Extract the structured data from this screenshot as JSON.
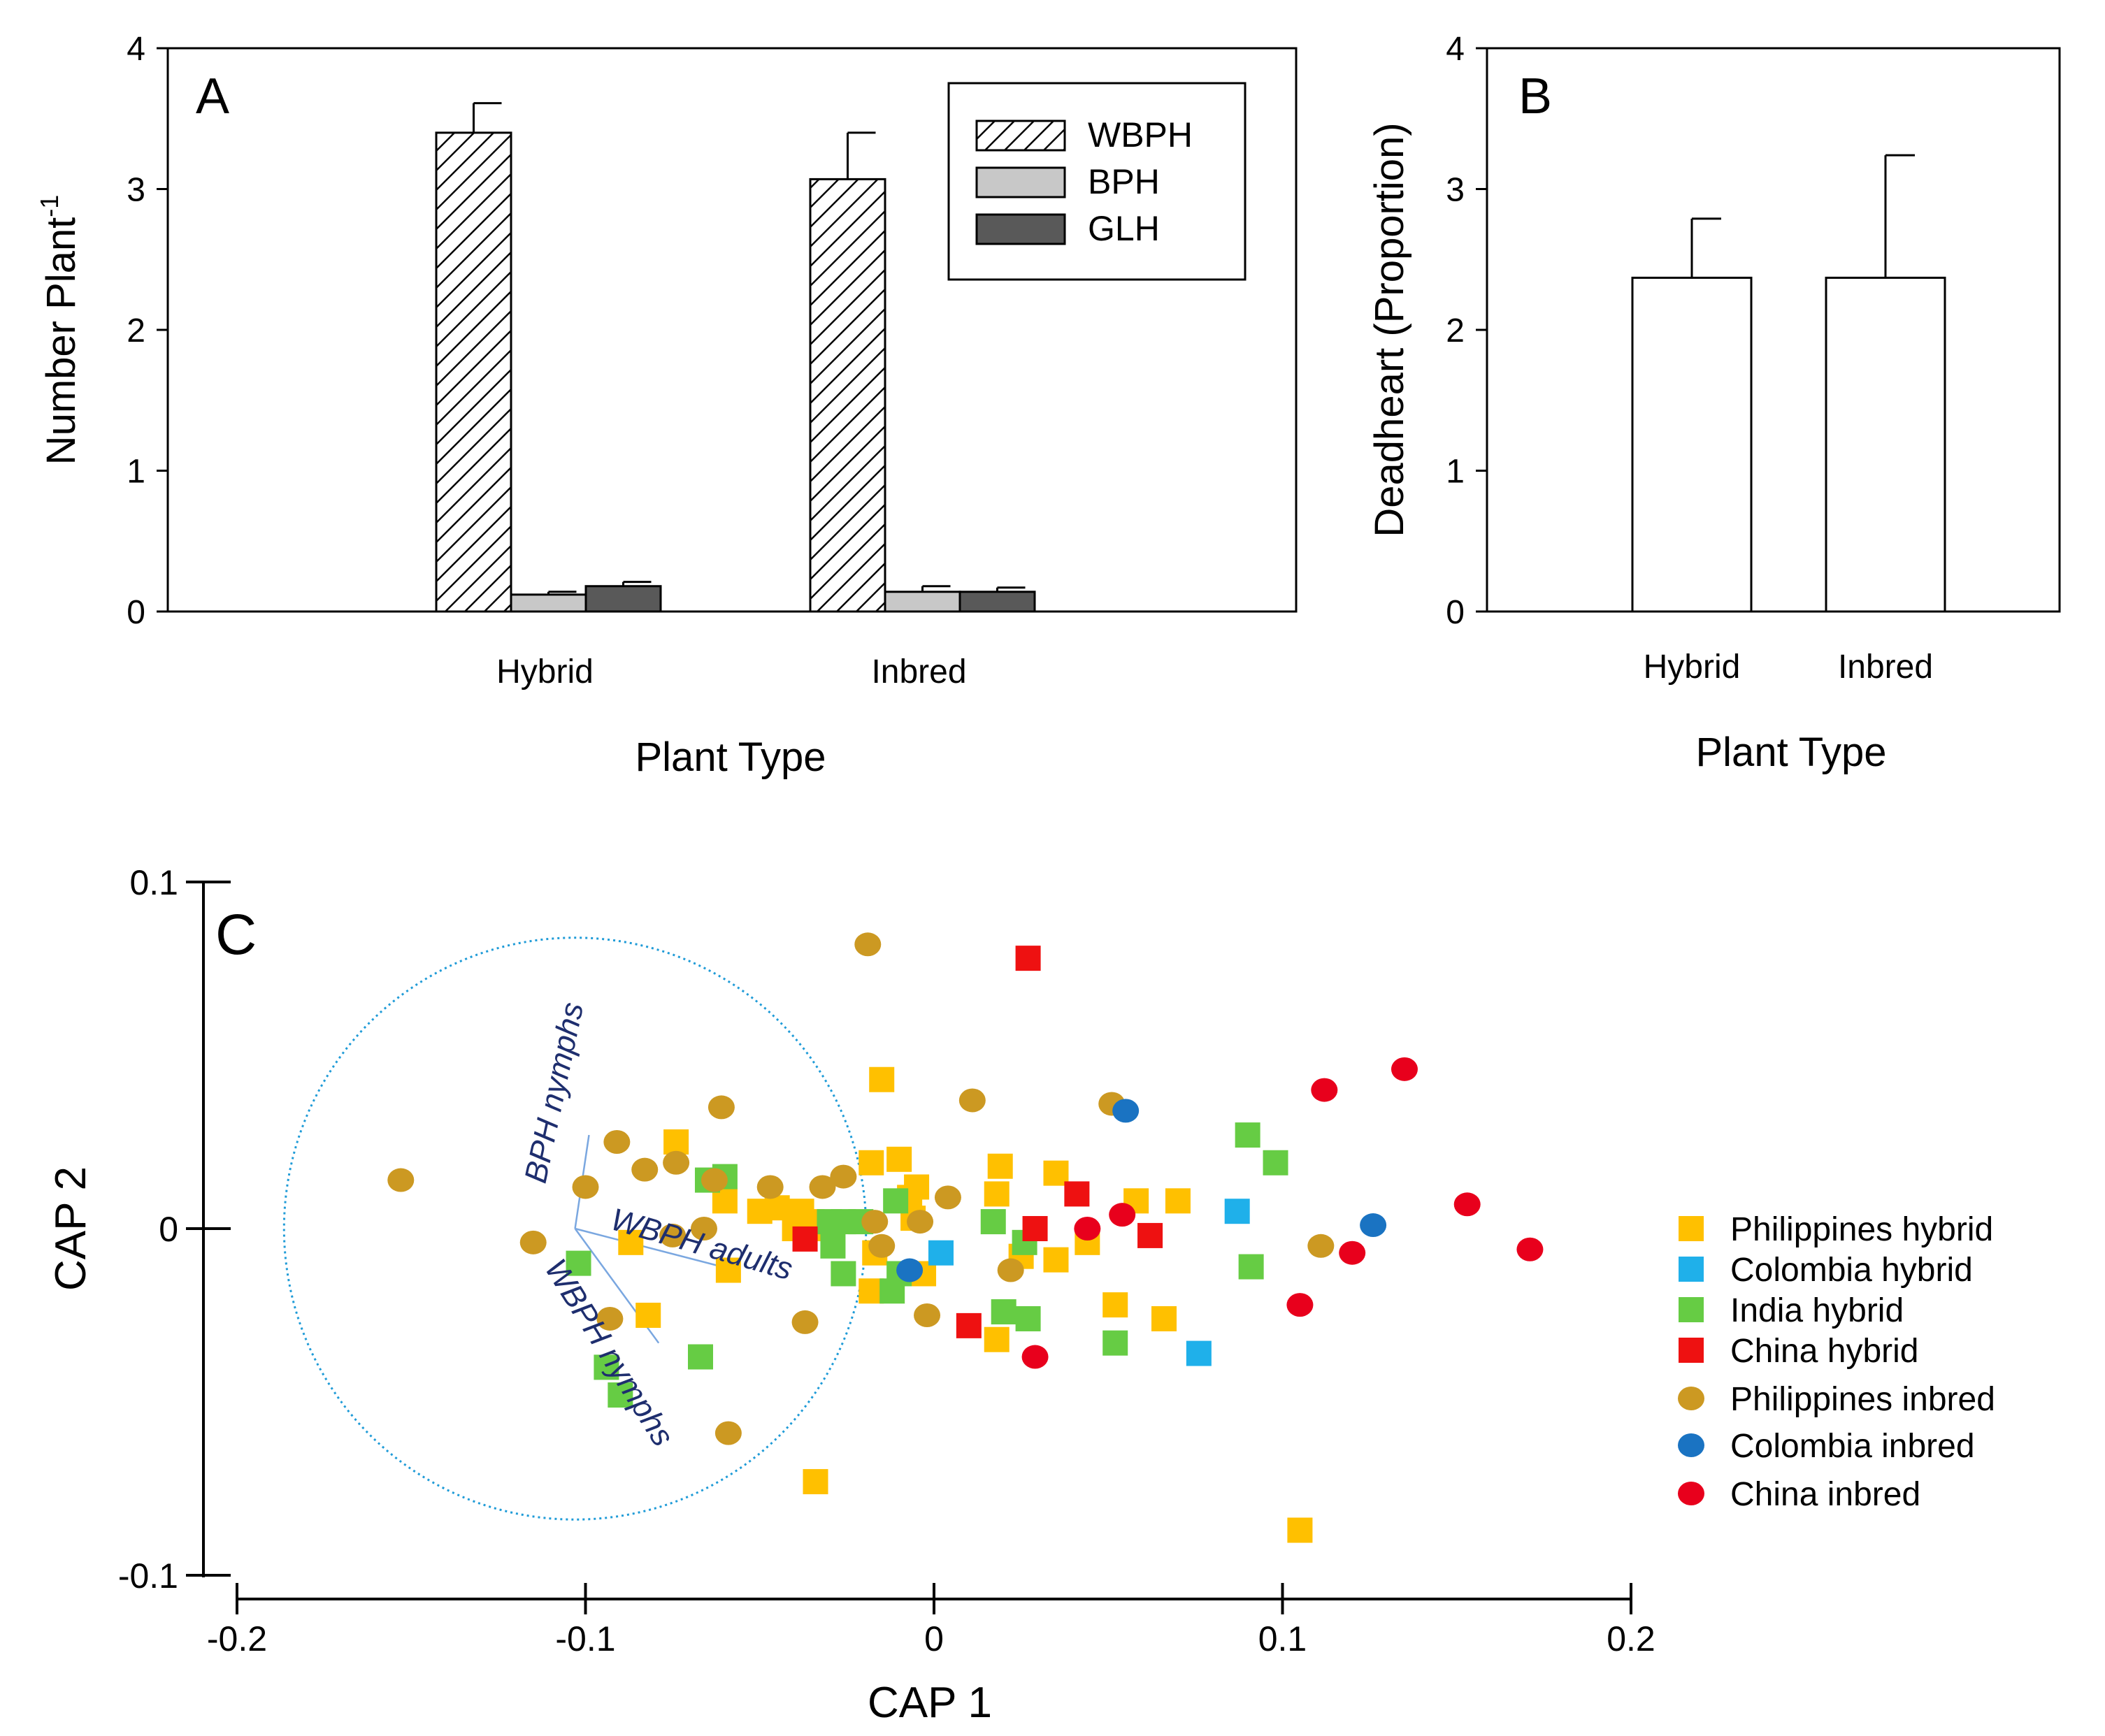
{
  "chart_data": [
    {
      "panel": "A",
      "type": "bar",
      "xlabel": "Plant Type",
      "ylabel": "Number Plant",
      "ylabel_superscript": "-1",
      "ylim": [
        0,
        4
      ],
      "yticks": [
        "0",
        "1",
        "2",
        "3",
        "4"
      ],
      "categories": [
        "Hybrid",
        "Inbred"
      ],
      "series": [
        {
          "name": "WBPH",
          "fill": "hatched",
          "values": [
            3.4,
            3.07
          ],
          "errors": [
            0.21,
            0.33
          ]
        },
        {
          "name": "BPH",
          "fill": "#c8c8c8",
          "values": [
            0.12,
            0.14
          ],
          "errors": [
            0.02,
            0.04
          ]
        },
        {
          "name": "GLH",
          "fill": "#595959",
          "values": [
            0.18,
            0.14
          ],
          "errors": [
            0.03,
            0.03
          ]
        }
      ],
      "legend_position": "top-right"
    },
    {
      "panel": "B",
      "type": "bar",
      "xlabel": "Plant Type",
      "ylabel": "Deadheart (Proportion)",
      "ylim": [
        0,
        4
      ],
      "yticks": [
        "0",
        "1",
        "2",
        "3",
        "4"
      ],
      "categories": [
        "Hybrid",
        "Inbred"
      ],
      "series": [
        {
          "name": "Deadheart",
          "fill": "#ffffff",
          "values": [
            2.37,
            2.37
          ],
          "errors": [
            0.42,
            0.87
          ]
        }
      ]
    },
    {
      "panel": "C",
      "type": "scatter",
      "xlabel": "CAP 1",
      "ylabel": "CAP 2",
      "xlim": [
        -0.2,
        0.2
      ],
      "ylim": [
        -0.1,
        0.1
      ],
      "xticks": [
        "-0.2",
        "-0.1",
        "0",
        "0.1",
        "0.2"
      ],
      "yticks": [
        "-0.1",
        "0",
        "0.1"
      ],
      "circle": {
        "center": [
          -0.103,
          0
        ],
        "radius": 0.0835
      },
      "vectors": [
        {
          "label": "BPH nymphs",
          "end": [
            -0.099,
            0.027
          ]
        },
        {
          "label": "WBPH adults",
          "end": [
            -0.057,
            -0.012
          ]
        },
        {
          "label": "WBPH nymphs",
          "end": [
            -0.079,
            -0.033
          ]
        }
      ],
      "legend_position": "right",
      "series": [
        {
          "name": "Philippines hybrid",
          "marker": "square",
          "color": "#FFC000",
          "points": [
            [
              -0.082,
              -0.025
            ],
            [
              -0.087,
              -0.004
            ],
            [
              -0.074,
              0.025
            ],
            [
              -0.06,
              0.008
            ],
            [
              -0.059,
              -0.012
            ],
            [
              -0.05,
              0.005
            ],
            [
              -0.045,
              0.006
            ],
            [
              -0.04,
              0.0
            ],
            [
              -0.038,
              0.005
            ],
            [
              -0.035,
              0.002
            ],
            [
              -0.03,
              0.0
            ],
            [
              -0.018,
              0.019
            ],
            [
              -0.017,
              -0.007
            ],
            [
              -0.018,
              -0.018
            ],
            [
              -0.015,
              0.043
            ],
            [
              -0.01,
              0.02
            ],
            [
              -0.007,
              0.009
            ],
            [
              -0.006,
              0.003
            ],
            [
              -0.005,
              0.012
            ],
            [
              -0.003,
              -0.013
            ],
            [
              0.018,
              0.01
            ],
            [
              0.019,
              0.018
            ],
            [
              0.018,
              -0.032
            ],
            [
              0.025,
              -0.008
            ],
            [
              0.035,
              0.016
            ],
            [
              0.035,
              -0.009
            ],
            [
              0.044,
              -0.004
            ],
            [
              0.052,
              -0.022
            ],
            [
              0.058,
              0.008
            ],
            [
              0.066,
              -0.026
            ],
            [
              0.07,
              0.008
            ],
            [
              -0.034,
              -0.073
            ],
            [
              0.105,
              -0.087
            ]
          ]
        },
        {
          "name": "Colombia hybrid",
          "marker": "square",
          "color": "#1FB0EA",
          "points": [
            [
              0.002,
              -0.007
            ],
            [
              0.087,
              0.005
            ],
            [
              0.076,
              -0.036
            ]
          ]
        },
        {
          "name": "India hybrid",
          "marker": "square",
          "color": "#66CC44",
          "points": [
            [
              -0.102,
              -0.01
            ],
            [
              -0.094,
              -0.04
            ],
            [
              -0.09,
              -0.048
            ],
            [
              -0.067,
              -0.037
            ],
            [
              -0.065,
              0.014
            ],
            [
              -0.06,
              0.015
            ],
            [
              -0.03,
              0.002
            ],
            [
              -0.029,
              -0.005
            ],
            [
              -0.026,
              0.002
            ],
            [
              -0.026,
              -0.013
            ],
            [
              -0.021,
              0.002
            ],
            [
              -0.011,
              0.008
            ],
            [
              -0.01,
              -0.013
            ],
            [
              -0.012,
              -0.018
            ],
            [
              0.017,
              0.002
            ],
            [
              0.02,
              -0.024
            ],
            [
              0.026,
              -0.004
            ],
            [
              0.027,
              -0.026
            ],
            [
              0.052,
              -0.033
            ],
            [
              0.09,
              0.027
            ],
            [
              0.098,
              0.019
            ],
            [
              0.091,
              -0.011
            ]
          ]
        },
        {
          "name": "China hybrid",
          "marker": "square",
          "color": "#EE1111",
          "points": [
            [
              -0.037,
              -0.003
            ],
            [
              0.01,
              -0.028
            ],
            [
              0.027,
              0.078
            ],
            [
              0.029,
              0.0
            ],
            [
              0.041,
              0.01
            ],
            [
              0.062,
              -0.002
            ]
          ]
        },
        {
          "name": "Philippines inbred",
          "marker": "circle",
          "color": "#CC9922",
          "points": [
            [
              -0.153,
              0.014
            ],
            [
              -0.115,
              -0.004
            ],
            [
              -0.1,
              0.012
            ],
            [
              -0.093,
              -0.026
            ],
            [
              -0.091,
              0.025
            ],
            [
              -0.083,
              0.017
            ],
            [
              -0.075,
              -0.002
            ],
            [
              -0.074,
              0.019
            ],
            [
              -0.066,
              0.0
            ],
            [
              -0.063,
              0.014
            ],
            [
              -0.061,
              0.035
            ],
            [
              -0.059,
              -0.059
            ],
            [
              -0.047,
              0.012
            ],
            [
              -0.037,
              -0.027
            ],
            [
              -0.032,
              0.012
            ],
            [
              -0.026,
              0.015
            ],
            [
              -0.019,
              0.082
            ],
            [
              -0.017,
              0.002
            ],
            [
              -0.015,
              -0.005
            ],
            [
              -0.004,
              0.002
            ],
            [
              -0.002,
              -0.025
            ],
            [
              0.004,
              0.009
            ],
            [
              0.011,
              0.037
            ],
            [
              0.022,
              -0.012
            ],
            [
              0.051,
              0.036
            ],
            [
              0.111,
              -0.005
            ]
          ]
        },
        {
          "name": "Colombia inbred",
          "marker": "circle",
          "color": "#1A73C2",
          "points": [
            [
              -0.007,
              -0.012
            ],
            [
              0.055,
              0.034
            ],
            [
              0.126,
              0.001
            ]
          ]
        },
        {
          "name": "China inbred",
          "marker": "circle",
          "color": "#E8001C",
          "points": [
            [
              0.029,
              -0.037
            ],
            [
              0.044,
              0.0
            ],
            [
              0.054,
              0.004
            ],
            [
              0.105,
              -0.022
            ],
            [
              0.112,
              0.04
            ],
            [
              0.12,
              -0.007
            ],
            [
              0.135,
              0.046
            ],
            [
              0.153,
              0.007
            ],
            [
              0.171,
              -0.006
            ]
          ]
        }
      ]
    }
  ],
  "panel_labels": {
    "A": "A",
    "B": "B",
    "C": "C"
  }
}
